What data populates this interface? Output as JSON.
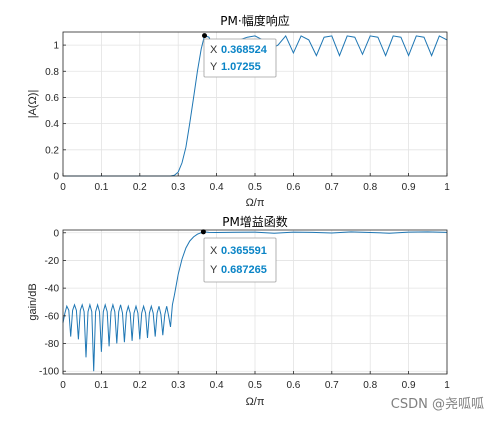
{
  "colors": {
    "line": "#1f77b4",
    "grid": "#e3e3e3",
    "axis": "#262626",
    "datatip_value": "#0a84c6"
  },
  "chart_data": [
    {
      "type": "line",
      "title": "PM·幅度响应",
      "xlabel": "Ω/π",
      "ylabel": "|A(Ω)|",
      "xlim": [
        0,
        1
      ],
      "ylim": [
        0,
        1.1
      ],
      "xticks": [
        "0",
        "0.1",
        "0.2",
        "0.3",
        "0.4",
        "0.5",
        "0.6",
        "0.7",
        "0.8",
        "0.9",
        "1"
      ],
      "yticks": [
        "0",
        "0.2",
        "0.4",
        "0.6",
        "0.8",
        "1"
      ],
      "grid": true,
      "series": [
        {
          "x": [
            0,
            0.05,
            0.1,
            0.15,
            0.2,
            0.25,
            0.28,
            0.29,
            0.3,
            0.31,
            0.32,
            0.33,
            0.34,
            0.35,
            0.36,
            0.3685,
            0.38,
            0.39,
            0.4,
            0.42,
            0.44,
            0.46,
            0.48,
            0.5,
            0.52,
            0.54,
            0.56,
            0.58,
            0.6,
            0.62,
            0.64,
            0.66,
            0.68,
            0.7,
            0.72,
            0.74,
            0.76,
            0.78,
            0.8,
            0.82,
            0.84,
            0.86,
            0.88,
            0.9,
            0.92,
            0.94,
            0.96,
            0.98,
            1.0
          ],
          "y": [
            0,
            0,
            0,
            0,
            0,
            0,
            0,
            0.005,
            0.03,
            0.1,
            0.22,
            0.4,
            0.6,
            0.8,
            0.97,
            1.07255,
            1.06,
            1.0,
            0.98,
            0.99,
            1.02,
            1.04,
            1.06,
            1.07,
            1.04,
            0.97,
            1.0,
            1.07,
            0.94,
            1.07,
            1.04,
            0.92,
            1.06,
            1.07,
            0.92,
            1.07,
            1.06,
            0.93,
            1.07,
            1.06,
            0.92,
            1.07,
            1.06,
            0.92,
            1.07,
            1.06,
            0.92,
            1.07,
            1.04
          ]
        }
      ],
      "datatip": {
        "x_label": "X",
        "x_value": "0.368524",
        "y_label": "Y",
        "y_value": "1.07255",
        "x": 0.368524,
        "y": 1.07255
      }
    },
    {
      "type": "line",
      "title": "PM增益函数",
      "xlabel": "Ω/π",
      "ylabel": "gain/dB",
      "xlim": [
        0,
        1
      ],
      "ylim": [
        -102,
        2
      ],
      "xticks": [
        "0",
        "0.1",
        "0.2",
        "0.3",
        "0.4",
        "0.5",
        "0.6",
        "0.7",
        "0.8",
        "0.9",
        "1"
      ],
      "yticks": [
        "0",
        "-20",
        "-40",
        "-60",
        "-80",
        "-100"
      ],
      "grid": true,
      "series": [
        {
          "x": [
            0,
            0.005,
            0.01,
            0.015,
            0.02,
            0.025,
            0.03,
            0.035,
            0.04,
            0.045,
            0.05,
            0.055,
            0.06,
            0.065,
            0.07,
            0.075,
            0.08,
            0.085,
            0.09,
            0.095,
            0.1,
            0.105,
            0.11,
            0.115,
            0.12,
            0.125,
            0.13,
            0.135,
            0.14,
            0.145,
            0.15,
            0.155,
            0.16,
            0.165,
            0.17,
            0.175,
            0.18,
            0.185,
            0.19,
            0.195,
            0.2,
            0.205,
            0.21,
            0.215,
            0.22,
            0.225,
            0.23,
            0.235,
            0.24,
            0.245,
            0.25,
            0.255,
            0.26,
            0.265,
            0.27,
            0.275,
            0.28,
            0.285,
            0.29,
            0.3,
            0.31,
            0.32,
            0.33,
            0.34,
            0.35,
            0.3656,
            0.38,
            0.4,
            0.45,
            0.5,
            0.55,
            0.6,
            0.65,
            0.7,
            0.75,
            0.8,
            0.85,
            0.9,
            0.95,
            1.0
          ],
          "y": [
            -65,
            -58,
            -53,
            -56,
            -75,
            -56,
            -52,
            -56,
            -77,
            -56,
            -52,
            -57,
            -90,
            -57,
            -52,
            -57,
            -100,
            -57,
            -52,
            -57,
            -86,
            -57,
            -52,
            -57,
            -82,
            -57,
            -52,
            -57,
            -80,
            -57,
            -52,
            -58,
            -79,
            -58,
            -53,
            -58,
            -78,
            -58,
            -53,
            -58,
            -77,
            -58,
            -53,
            -58,
            -76,
            -58,
            -53,
            -58,
            -75,
            -58,
            -53,
            -59,
            -74,
            -59,
            -53,
            -60,
            -68,
            -52,
            -45,
            -30,
            -19,
            -11,
            -6,
            -3,
            -1,
            0.687,
            0.3,
            0.2,
            0.4,
            0.5,
            -0.3,
            0.5,
            0.3,
            -0.2,
            0.6,
            0.2,
            -0.3,
            0.5,
            0.6,
            0.3
          ]
        }
      ],
      "datatip": {
        "x_label": "X",
        "x_value": "0.365591",
        "y_label": "Y",
        "y_value": "0.687265",
        "x": 0.365591,
        "y": 0.687265
      }
    }
  ],
  "watermark": "CSDN @尧呱呱"
}
